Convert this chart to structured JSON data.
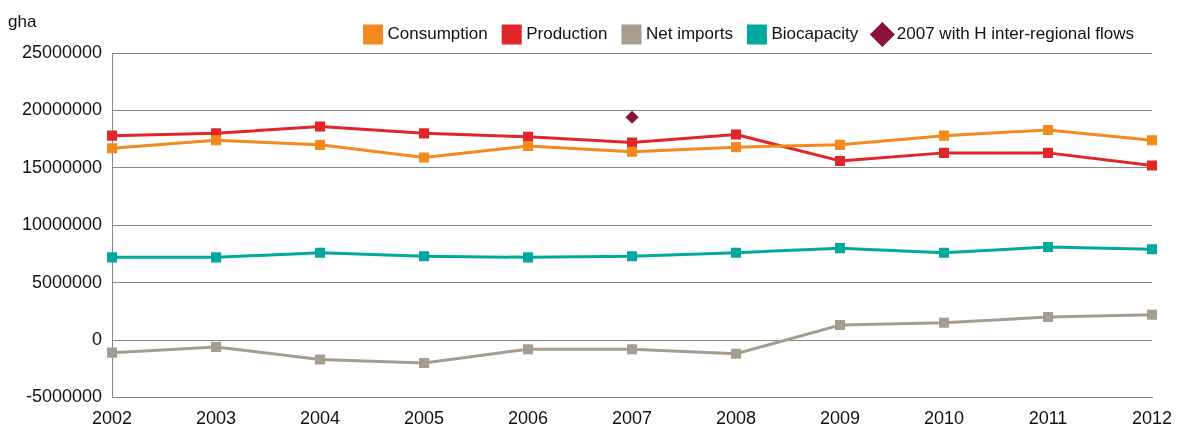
{
  "chart_data": {
    "type": "line",
    "ylabel": "gha",
    "categories": [
      "2002",
      "2003",
      "2004",
      "2005",
      "2006",
      "2007",
      "2008",
      "2009",
      "2010",
      "2011",
      "2012"
    ],
    "series": [
      {
        "name": "Consumption",
        "color": "#f28a1e",
        "values": [
          16700000,
          17400000,
          17000000,
          15900000,
          16900000,
          16400000,
          16800000,
          17000000,
          17800000,
          18300000,
          17400000
        ]
      },
      {
        "name": "Production",
        "color": "#e0262a",
        "values": [
          17800000,
          18000000,
          18600000,
          18000000,
          17700000,
          17200000,
          17900000,
          15600000,
          16300000,
          16300000,
          15200000
        ]
      },
      {
        "name": "Net imports",
        "color": "#a59d8f",
        "values": [
          -1100000,
          -600000,
          -1700000,
          -2000000,
          -800000,
          -800000,
          -1200000,
          1300000,
          1500000,
          2000000,
          2200000
        ]
      },
      {
        "name": "Biocapacity",
        "color": "#00a99d",
        "values": [
          7200000,
          7200000,
          7600000,
          7300000,
          7200000,
          7300000,
          7600000,
          8000000,
          7600000,
          8100000,
          7900000
        ]
      },
      {
        "name": "2007 with H inter-regional flows",
        "type": "scatter",
        "marker": "diamond",
        "color": "#8b1238",
        "values": [
          null,
          null,
          null,
          null,
          null,
          19400000,
          null,
          null,
          null,
          null,
          null
        ]
      }
    ],
    "ylim": [
      -5000000,
      25000000
    ],
    "yticks": [
      -5000000,
      0,
      5000000,
      10000000,
      15000000,
      20000000,
      25000000
    ],
    "grid": "y",
    "legend": "top",
    "marker": "square",
    "line_style": "solid"
  }
}
